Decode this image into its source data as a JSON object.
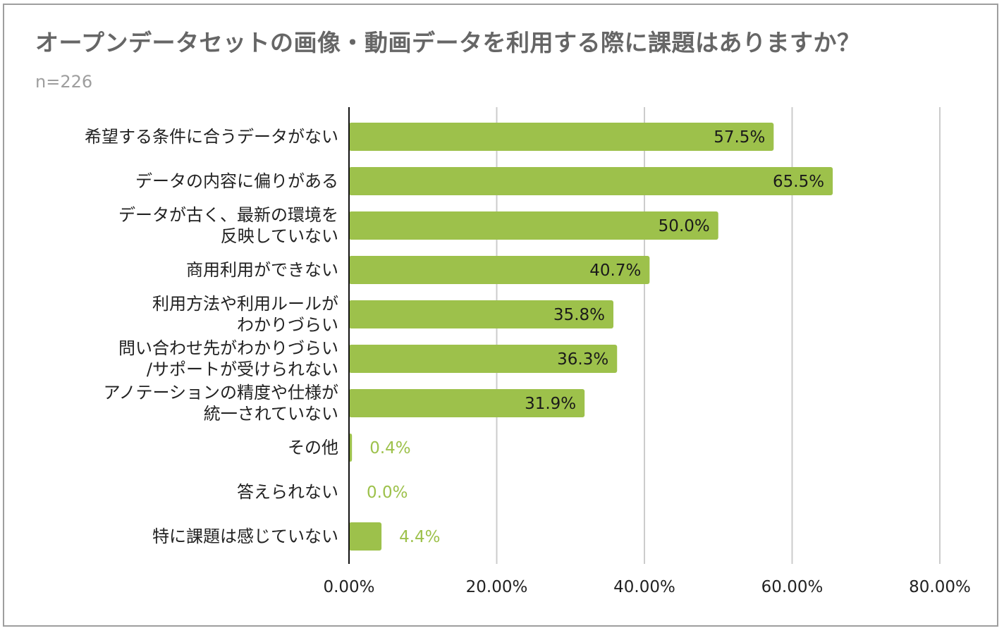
{
  "chart_data": {
    "type": "bar",
    "orientation": "horizontal",
    "title": "オープンデータセットの画像・動画データを利用する際に課題はありますか？",
    "subtitle": "n=226",
    "categories": [
      "希望する条件に合うデータがない",
      "データの内容に偏りがある",
      "データが古く、最新の環境を\n反映していない",
      "商用利用ができない",
      "利用方法や利用ルールが\nわかりづらい",
      "問い合わせ先がわかりづらい\n/サポートが受けられない",
      "アノテーションの精度や仕様が\n統一されていない",
      "その他",
      "答えられない",
      "特に課題は感じていない"
    ],
    "values": [
      57.5,
      65.5,
      50.0,
      40.7,
      35.8,
      36.3,
      31.9,
      0.4,
      0.0,
      4.4
    ],
    "value_labels": [
      "57.5%",
      "65.5%",
      "50.0%",
      "40.7%",
      "35.8%",
      "36.3%",
      "31.9%",
      "0.4%",
      "0.0%",
      "4.4%"
    ],
    "xlim": [
      0,
      80
    ],
    "xticks": [
      0,
      20,
      40,
      60,
      80
    ],
    "xtick_labels": [
      "0.00%",
      "20.00%",
      "40.00%",
      "60.00%",
      "80.00%"
    ],
    "grid": true,
    "legend": "none",
    "bar_color": "#9dc14b",
    "inside_label_color": "#1a1a1a",
    "outside_label_color": "#9dc14b"
  }
}
